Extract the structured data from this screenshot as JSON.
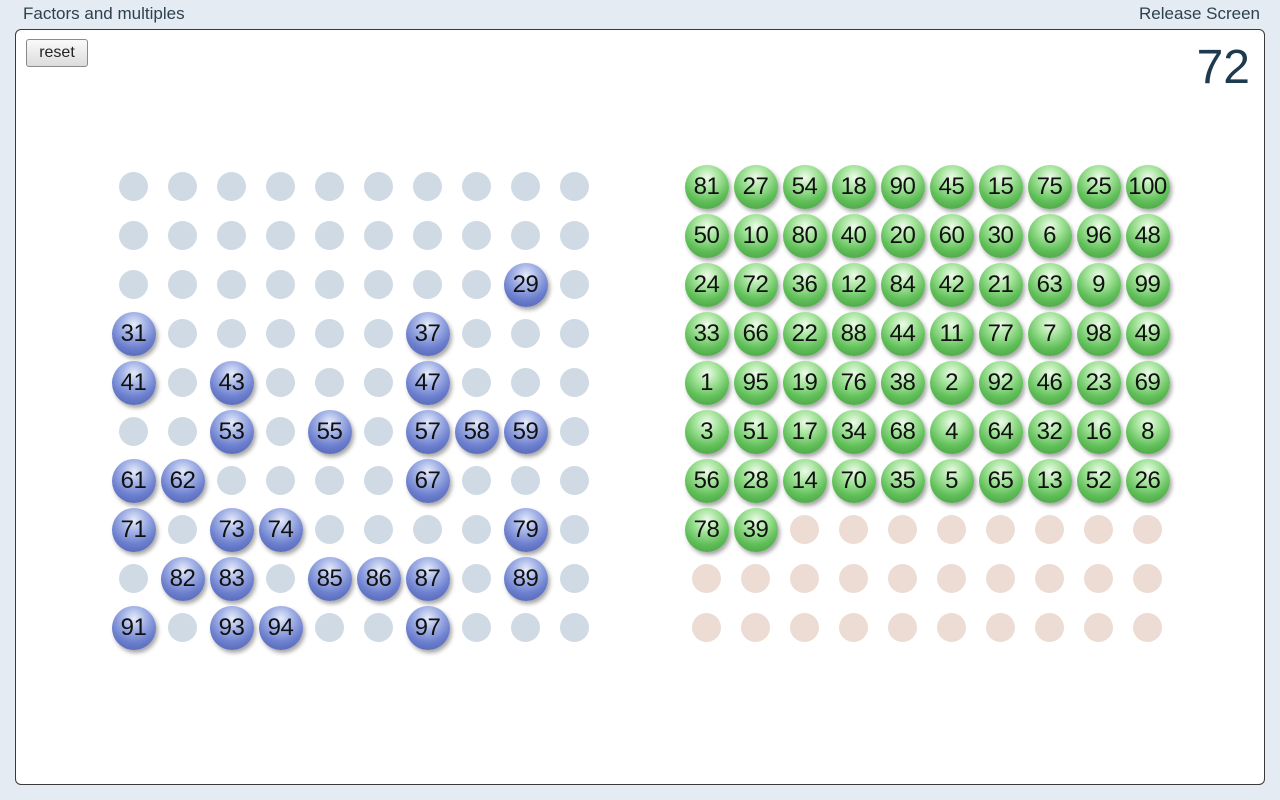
{
  "header": {
    "title": "Factors and multiples",
    "release_label": "Release Screen"
  },
  "toolbar": {
    "reset_label": "reset"
  },
  "current_number": "72",
  "colors": {
    "placed_ball": "#6d80cf",
    "available_ball": "#62c05a",
    "left_empty_slot": "#cfdae4",
    "right_empty_slot": "#ecdcd3"
  },
  "left_grid": {
    "rows": [
      [
        "",
        "",
        "",
        "",
        "",
        "",
        "",
        "",
        "",
        ""
      ],
      [
        "",
        "",
        "",
        "",
        "",
        "",
        "",
        "",
        "",
        ""
      ],
      [
        "",
        "",
        "",
        "",
        "",
        "",
        "",
        "",
        "29",
        ""
      ],
      [
        "31",
        "",
        "",
        "",
        "",
        "",
        "37",
        "",
        "",
        ""
      ],
      [
        "41",
        "",
        "43",
        "",
        "",
        "",
        "47",
        "",
        "",
        ""
      ],
      [
        "",
        "",
        "53",
        "",
        "55",
        "",
        "57",
        "58",
        "59",
        ""
      ],
      [
        "61",
        "62",
        "",
        "",
        "",
        "",
        "67",
        "",
        "",
        ""
      ],
      [
        "71",
        "",
        "73",
        "74",
        "",
        "",
        "",
        "",
        "79",
        ""
      ],
      [
        "",
        "82",
        "83",
        "",
        "85",
        "86",
        "87",
        "",
        "89",
        ""
      ],
      [
        "91",
        "",
        "93",
        "94",
        "",
        "",
        "97",
        "",
        "",
        ""
      ]
    ]
  },
  "right_grid": {
    "rows": [
      [
        "81",
        "27",
        "54",
        "18",
        "90",
        "45",
        "15",
        "75",
        "25",
        "100"
      ],
      [
        "50",
        "10",
        "80",
        "40",
        "20",
        "60",
        "30",
        "6",
        "96",
        "48"
      ],
      [
        "24",
        "72",
        "36",
        "12",
        "84",
        "42",
        "21",
        "63",
        "9",
        "99"
      ],
      [
        "33",
        "66",
        "22",
        "88",
        "44",
        "11",
        "77",
        "7",
        "98",
        "49"
      ],
      [
        "1",
        "95",
        "19",
        "76",
        "38",
        "2",
        "92",
        "46",
        "23",
        "69"
      ],
      [
        "3",
        "51",
        "17",
        "34",
        "68",
        "4",
        "64",
        "32",
        "16",
        "8"
      ],
      [
        "56",
        "28",
        "14",
        "70",
        "35",
        "5",
        "65",
        "13",
        "52",
        "26"
      ],
      [
        "78",
        "39",
        "",
        "",
        "",
        "",
        "",
        "",
        "",
        ""
      ],
      [
        "",
        "",
        "",
        "",
        "",
        "",
        "",
        "",
        "",
        ""
      ],
      [
        "",
        "",
        "",
        "",
        "",
        "",
        "",
        "",
        "",
        ""
      ]
    ]
  }
}
